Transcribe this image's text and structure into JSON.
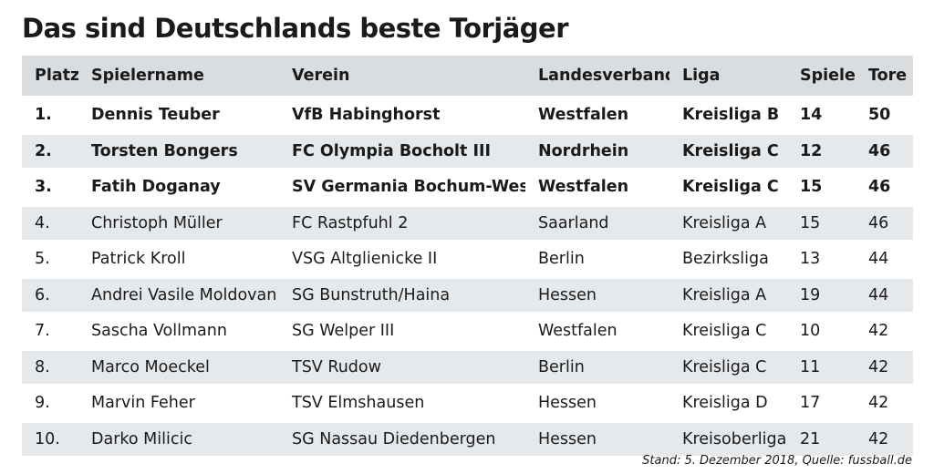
{
  "title": "Das sind Deutschlands beste Torjäger",
  "columns": [
    "Platz",
    "Spielername",
    "Verein",
    "Landesverband",
    "Liga",
    "Spiele",
    "Tore"
  ],
  "rows": [
    {
      "platz": "1.",
      "name": "Dennis Teuber",
      "verein": "VfB Habinghorst",
      "landesverband": "Westfalen",
      "liga": "Kreisliga B",
      "spiele": "14",
      "tore": "50",
      "bold": true
    },
    {
      "platz": "2.",
      "name": "Torsten Bongers",
      "verein": "FC Olympia Bocholt III",
      "landesverband": "Nordrhein",
      "liga": "Kreisliga C",
      "spiele": "12",
      "tore": "46",
      "bold": true
    },
    {
      "platz": "3.",
      "name": "Fatih Doganay",
      "verein": "SV Germania Bochum-West II",
      "landesverband": "Westfalen",
      "liga": "Kreisliga C",
      "spiele": "15",
      "tore": "46",
      "bold": true
    },
    {
      "platz": "4.",
      "name": "Christoph Müller",
      "verein": "FC Rastpfuhl 2",
      "landesverband": "Saarland",
      "liga": "Kreisliga A",
      "spiele": "15",
      "tore": "46",
      "bold": false
    },
    {
      "platz": "5.",
      "name": "Patrick Kroll",
      "verein": "VSG Altglienicke II",
      "landesverband": "Berlin",
      "liga": "Bezirksliga",
      "spiele": "13",
      "tore": "44",
      "bold": false
    },
    {
      "platz": "6.",
      "name": "Andrei Vasile Moldovan",
      "verein": "SG Bunstruth/Haina",
      "landesverband": "Hessen",
      "liga": "Kreisliga A",
      "spiele": "19",
      "tore": "44",
      "bold": false
    },
    {
      "platz": "7.",
      "name": "Sascha Vollmann",
      "verein": "SG Welper III",
      "landesverband": "Westfalen",
      "liga": "Kreisliga C",
      "spiele": "10",
      "tore": "42",
      "bold": false
    },
    {
      "platz": "8.",
      "name": "Marco Moeckel",
      "verein": "TSV Rudow",
      "landesverband": "Berlin",
      "liga": "Kreisliga C",
      "spiele": "11",
      "tore": "42",
      "bold": false
    },
    {
      "platz": "9.",
      "name": "Marvin Feher",
      "verein": "TSV Elmshausen",
      "landesverband": "Hessen",
      "liga": "Kreisliga D",
      "spiele": "17",
      "tore": "42",
      "bold": false
    },
    {
      "platz": "10.",
      "name": "Darko Milicic",
      "verein": "SG Nassau Diedenbergen",
      "landesverband": "Hessen",
      "liga": "Kreisoberliga",
      "spiele": "21",
      "tore": "42",
      "bold": false
    }
  ],
  "footer": "Stand: 5. Dezember 2018, Quelle: fussball.de"
}
